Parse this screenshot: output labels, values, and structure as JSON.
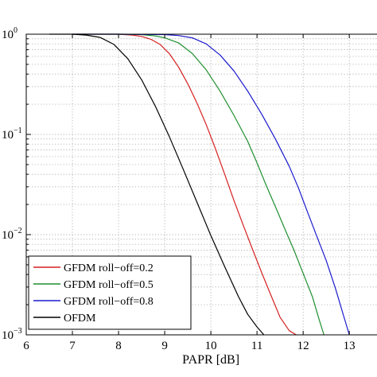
{
  "chart_data": {
    "type": "line",
    "xlabel": "PAPR [dB]",
    "ylabel": "",
    "title": "",
    "xlim": [
      6,
      13.6
    ],
    "ylim": [
      0.001,
      1
    ],
    "yscale": "log",
    "grid": true,
    "legend_position": "bottom-left",
    "x_ticks": [
      "6",
      "7",
      "8",
      "9",
      "10",
      "11",
      "12",
      "13"
    ],
    "x_tick_values": [
      6,
      7,
      8,
      9,
      10,
      11,
      12,
      13
    ],
    "y_ticks": [
      {
        "base": "10",
        "exp": "0",
        "value": 1
      },
      {
        "base": "10",
        "exp": "−1",
        "value": 0.1
      },
      {
        "base": "10",
        "exp": "−2",
        "value": 0.01
      },
      {
        "base": "10",
        "exp": "−3",
        "value": 0.001
      }
    ],
    "series": [
      {
        "name": "GFDM roll−off=0.2",
        "color": "#d62020",
        "x": [
          7.0,
          7.5,
          8.0,
          8.3,
          8.5,
          8.7,
          8.9,
          9.1,
          9.3,
          9.5,
          9.7,
          9.9,
          10.1,
          10.3,
          10.5,
          10.7,
          10.9,
          11.1,
          11.3,
          11.5,
          11.7,
          11.85
        ],
        "y": [
          1,
          1,
          1,
          0.98,
          0.95,
          0.89,
          0.79,
          0.64,
          0.47,
          0.32,
          0.205,
          0.125,
          0.072,
          0.04,
          0.022,
          0.0125,
          0.0072,
          0.0042,
          0.0025,
          0.0015,
          0.0011,
          0.001
        ]
      },
      {
        "name": "GFDM roll−off=0.5",
        "color": "#1f8f2f",
        "x": [
          7.0,
          7.5,
          8.0,
          8.5,
          8.8,
          9.0,
          9.3,
          9.6,
          9.9,
          10.2,
          10.5,
          10.8,
          11.0,
          11.2,
          11.4,
          11.6,
          11.8,
          12.0,
          12.2,
          12.35,
          12.45
        ],
        "y": [
          1,
          1,
          1,
          0.99,
          0.96,
          0.92,
          0.82,
          0.64,
          0.44,
          0.27,
          0.155,
          0.085,
          0.052,
          0.031,
          0.019,
          0.0115,
          0.007,
          0.0041,
          0.0024,
          0.0014,
          0.001
        ]
      },
      {
        "name": "GFDM roll−off=0.8",
        "color": "#1a1acd",
        "x": [
          7.0,
          8.0,
          9.0,
          9.3,
          9.6,
          9.9,
          10.2,
          10.5,
          10.8,
          11.1,
          11.4,
          11.7,
          11.9,
          12.1,
          12.3,
          12.5,
          12.7,
          12.85,
          13.0
        ],
        "y": [
          1,
          1,
          0.99,
          0.97,
          0.92,
          0.8,
          0.62,
          0.43,
          0.27,
          0.16,
          0.09,
          0.048,
          0.029,
          0.0165,
          0.0095,
          0.0055,
          0.0029,
          0.0017,
          0.001
        ]
      },
      {
        "name": "OFDM",
        "color": "#000000",
        "x": [
          6.5,
          7.0,
          7.3,
          7.6,
          7.9,
          8.2,
          8.5,
          8.8,
          9.1,
          9.4,
          9.7,
          10.0,
          10.3,
          10.6,
          10.8,
          11.0,
          11.15
        ],
        "y": [
          1,
          1,
          0.98,
          0.93,
          0.79,
          0.57,
          0.35,
          0.19,
          0.095,
          0.045,
          0.021,
          0.0098,
          0.0048,
          0.0024,
          0.0016,
          0.0012,
          0.001
        ]
      }
    ]
  }
}
